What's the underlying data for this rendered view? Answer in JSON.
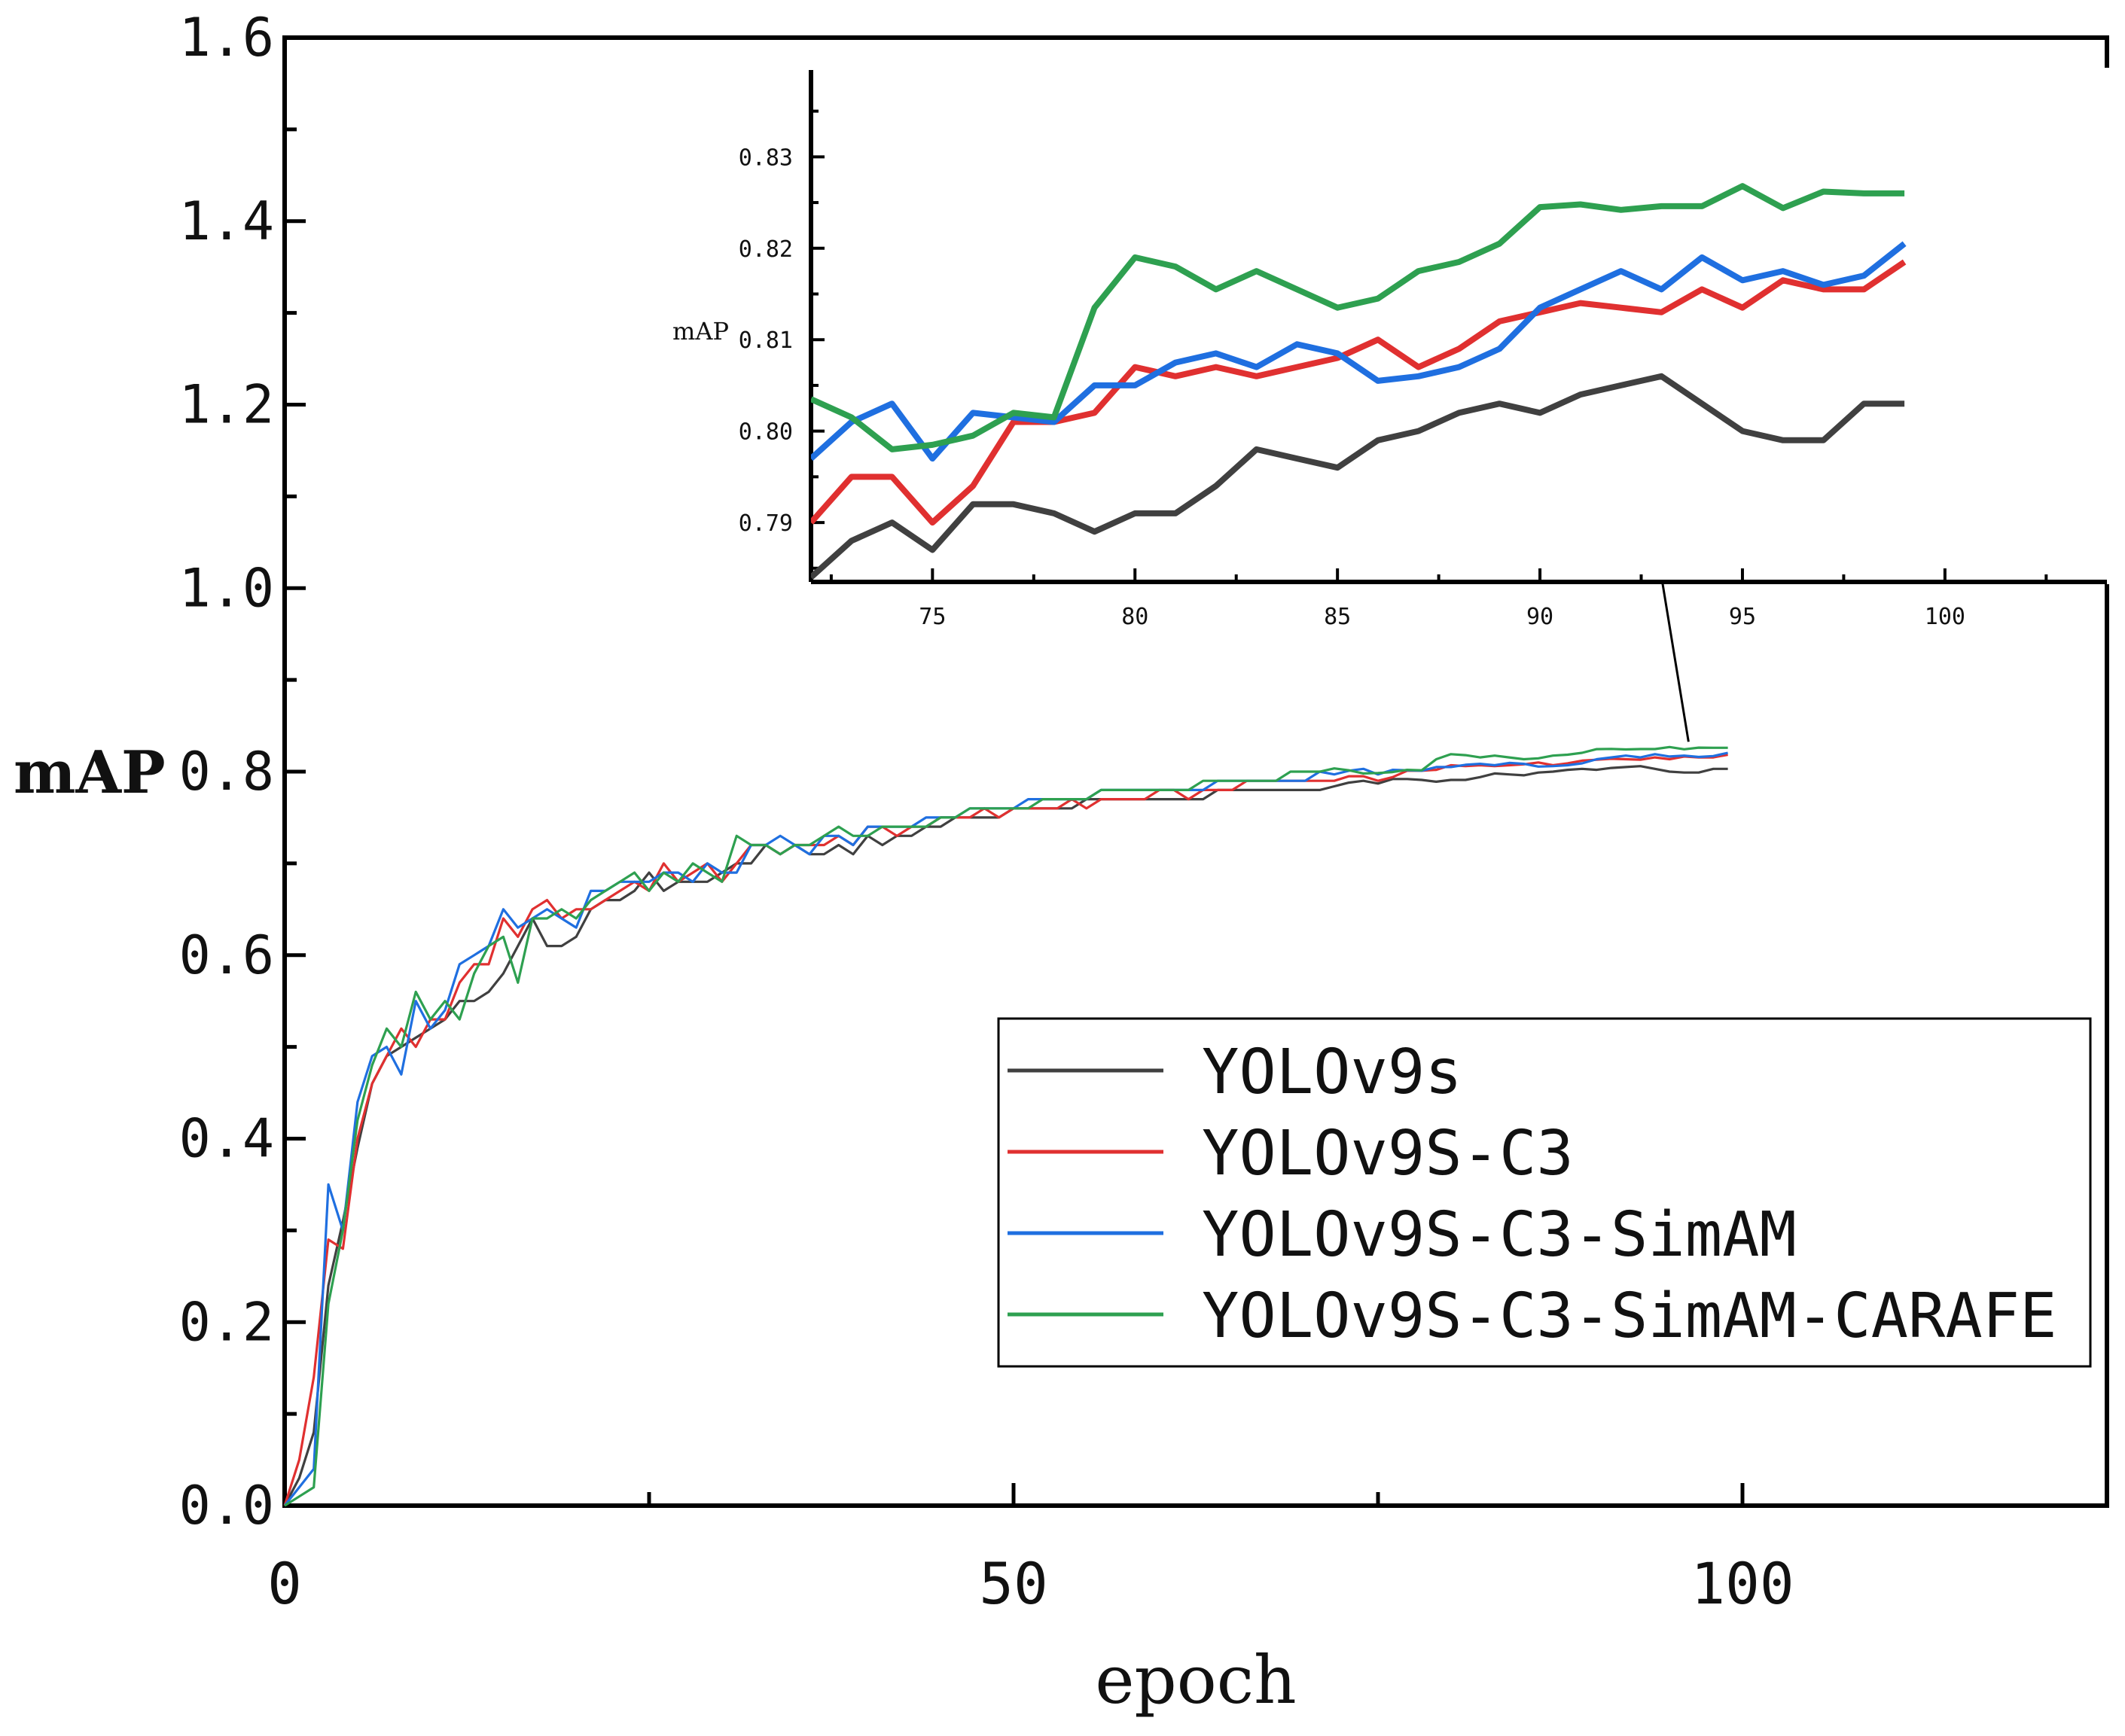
{
  "chart_data": [
    {
      "type": "line",
      "title": "",
      "xlabel": "epoch",
      "ylabel": "mAP",
      "xlim": [
        0,
        125
      ],
      "ylim": [
        0.0,
        1.6
      ],
      "x_ticks": [
        0,
        50,
        100
      ],
      "x_tick_labels": [
        "0",
        "50",
        "100"
      ],
      "y_ticks": [
        0.0,
        0.2,
        0.4,
        0.6,
        0.8,
        1.0,
        1.2,
        1.4,
        1.6
      ],
      "y_tick_labels": [
        "0.0",
        "0.2",
        "0.4",
        "0.6",
        "0.8",
        "1.0",
        "1.2",
        "1.4",
        "1.6"
      ],
      "grid": false,
      "legend": "bottom-right",
      "x": [
        0,
        1,
        2,
        3,
        4,
        5,
        6,
        7,
        8,
        9,
        10,
        11,
        12,
        13,
        14,
        15,
        16,
        17,
        18,
        19,
        20,
        21,
        22,
        23,
        24,
        25,
        26,
        27,
        28,
        29,
        30,
        31,
        32,
        33,
        34,
        35,
        36,
        37,
        38,
        39,
        40,
        41,
        42,
        43,
        44,
        45,
        46,
        47,
        48,
        49,
        50,
        51,
        52,
        53,
        54,
        55,
        56,
        57,
        58,
        59,
        60,
        61,
        62,
        63,
        64,
        65,
        66,
        67,
        68,
        69,
        70,
        71,
        72,
        73,
        74,
        75,
        76,
        77,
        78,
        79,
        80,
        81,
        82,
        83,
        84,
        85,
        86,
        87,
        88,
        89,
        90,
        91,
        92,
        93,
        94,
        95,
        96,
        97,
        98,
        99
      ],
      "series": [
        {
          "name": "YOLOv9s",
          "color": "#404040",
          "values": [
            0.0,
            0.03,
            0.08,
            0.24,
            0.31,
            0.39,
            0.46,
            0.49,
            0.5,
            0.51,
            0.52,
            0.53,
            0.55,
            0.55,
            0.56,
            0.58,
            0.61,
            0.64,
            0.61,
            0.61,
            0.62,
            0.65,
            0.66,
            0.66,
            0.67,
            0.69,
            0.67,
            0.68,
            0.68,
            0.68,
            0.69,
            0.7,
            0.7,
            0.72,
            0.71,
            0.72,
            0.71,
            0.71,
            0.72,
            0.71,
            0.73,
            0.72,
            0.73,
            0.73,
            0.74,
            0.74,
            0.75,
            0.75,
            0.75,
            0.75,
            0.76,
            0.76,
            0.76,
            0.76,
            0.76,
            0.77,
            0.77,
            0.77,
            0.77,
            0.77,
            0.77,
            0.77,
            0.77,
            0.77,
            0.78,
            0.78,
            0.78,
            0.78,
            0.78,
            0.78,
            0.78,
            0.78,
            0.784,
            0.788,
            0.79,
            0.787,
            0.792,
            0.792,
            0.791,
            0.789,
            0.791,
            0.791,
            0.794,
            0.798,
            0.797,
            0.796,
            0.799,
            0.8,
            0.802,
            0.803,
            0.802,
            0.804,
            0.805,
            0.806,
            0.803,
            0.8,
            0.799,
            0.799,
            0.803,
            0.803
          ]
        },
        {
          "name": "YOLOv9S-C3",
          "color": "#e03030",
          "values": [
            0.0,
            0.05,
            0.14,
            0.29,
            0.28,
            0.4,
            0.46,
            0.49,
            0.52,
            0.5,
            0.53,
            0.53,
            0.57,
            0.59,
            0.59,
            0.64,
            0.62,
            0.65,
            0.66,
            0.64,
            0.65,
            0.65,
            0.66,
            0.67,
            0.68,
            0.67,
            0.7,
            0.68,
            0.69,
            0.7,
            0.68,
            0.7,
            0.72,
            0.72,
            0.71,
            0.72,
            0.72,
            0.72,
            0.73,
            0.72,
            0.74,
            0.74,
            0.73,
            0.74,
            0.74,
            0.75,
            0.75,
            0.75,
            0.76,
            0.75,
            0.76,
            0.76,
            0.76,
            0.76,
            0.77,
            0.76,
            0.77,
            0.77,
            0.77,
            0.77,
            0.78,
            0.78,
            0.77,
            0.78,
            0.78,
            0.78,
            0.79,
            0.79,
            0.79,
            0.79,
            0.79,
            0.79,
            0.79,
            0.795,
            0.795,
            0.79,
            0.794,
            0.801,
            0.801,
            0.802,
            0.807,
            0.806,
            0.807,
            0.806,
            0.807,
            0.808,
            0.81,
            0.807,
            0.809,
            0.812,
            0.813,
            0.814,
            0.8135,
            0.813,
            0.8155,
            0.8135,
            0.8165,
            0.8155,
            0.8155,
            0.8185
          ]
        },
        {
          "name": "YOLOv9S-C3-SimAM",
          "color": "#1f6fe0",
          "values": [
            0.0,
            0.02,
            0.04,
            0.35,
            0.3,
            0.44,
            0.49,
            0.5,
            0.47,
            0.55,
            0.52,
            0.54,
            0.59,
            0.6,
            0.61,
            0.65,
            0.63,
            0.64,
            0.65,
            0.64,
            0.63,
            0.67,
            0.67,
            0.68,
            0.68,
            0.68,
            0.69,
            0.69,
            0.68,
            0.7,
            0.69,
            0.69,
            0.72,
            0.72,
            0.73,
            0.72,
            0.71,
            0.73,
            0.73,
            0.72,
            0.74,
            0.74,
            0.74,
            0.74,
            0.75,
            0.75,
            0.75,
            0.76,
            0.76,
            0.76,
            0.76,
            0.77,
            0.77,
            0.77,
            0.77,
            0.77,
            0.78,
            0.78,
            0.78,
            0.78,
            0.78,
            0.78,
            0.78,
            0.78,
            0.79,
            0.79,
            0.79,
            0.79,
            0.79,
            0.79,
            0.79,
            0.8,
            0.797,
            0.801,
            0.803,
            0.797,
            0.802,
            0.8015,
            0.801,
            0.805,
            0.805,
            0.8075,
            0.8085,
            0.807,
            0.8095,
            0.8085,
            0.8055,
            0.806,
            0.807,
            0.809,
            0.8135,
            0.8155,
            0.8175,
            0.8155,
            0.819,
            0.8165,
            0.8175,
            0.816,
            0.817,
            0.8205
          ]
        },
        {
          "name": "YOLOv9S-C3-SimAM-CARAFE",
          "color": "#2ea050",
          "values": [
            0.0,
            0.01,
            0.02,
            0.22,
            0.3,
            0.42,
            0.48,
            0.52,
            0.5,
            0.56,
            0.53,
            0.55,
            0.53,
            0.58,
            0.61,
            0.62,
            0.57,
            0.64,
            0.64,
            0.65,
            0.64,
            0.66,
            0.67,
            0.68,
            0.69,
            0.67,
            0.69,
            0.68,
            0.7,
            0.69,
            0.68,
            0.73,
            0.72,
            0.72,
            0.71,
            0.72,
            0.72,
            0.73,
            0.74,
            0.73,
            0.73,
            0.74,
            0.74,
            0.74,
            0.74,
            0.75,
            0.75,
            0.76,
            0.76,
            0.76,
            0.76,
            0.76,
            0.77,
            0.77,
            0.77,
            0.77,
            0.78,
            0.78,
            0.78,
            0.78,
            0.78,
            0.78,
            0.78,
            0.79,
            0.79,
            0.79,
            0.79,
            0.79,
            0.79,
            0.8,
            0.8,
            0.8,
            0.8035,
            0.8015,
            0.798,
            0.7985,
            0.7995,
            0.802,
            0.8015,
            0.8135,
            0.819,
            0.818,
            0.8155,
            0.8175,
            0.8155,
            0.8135,
            0.8145,
            0.8175,
            0.8185,
            0.8205,
            0.8245,
            0.8248,
            0.8242,
            0.8246,
            0.8246,
            0.8268,
            0.8244,
            0.8262,
            0.826,
            0.826
          ]
        }
      ]
    },
    {
      "type": "line",
      "title": "",
      "xlabel": "",
      "ylabel": "mAP",
      "xlim": [
        72,
        104
      ],
      "ylim": [
        0.7835,
        0.8395
      ],
      "x_ticks": [
        75,
        80,
        85,
        90,
        95,
        100
      ],
      "x_tick_labels": [
        "75",
        "80",
        "85",
        "90",
        "95",
        "100"
      ],
      "y_ticks": [
        0.79,
        0.8,
        0.81,
        0.82,
        0.83
      ],
      "y_tick_labels": [
        "0.79",
        "0.80",
        "0.81",
        "0.82",
        "0.83"
      ],
      "grid": false,
      "inset_of": "main plot, zoom on epochs 72-99",
      "series_ref": "same as main plot series, epochs 72-99"
    }
  ]
}
